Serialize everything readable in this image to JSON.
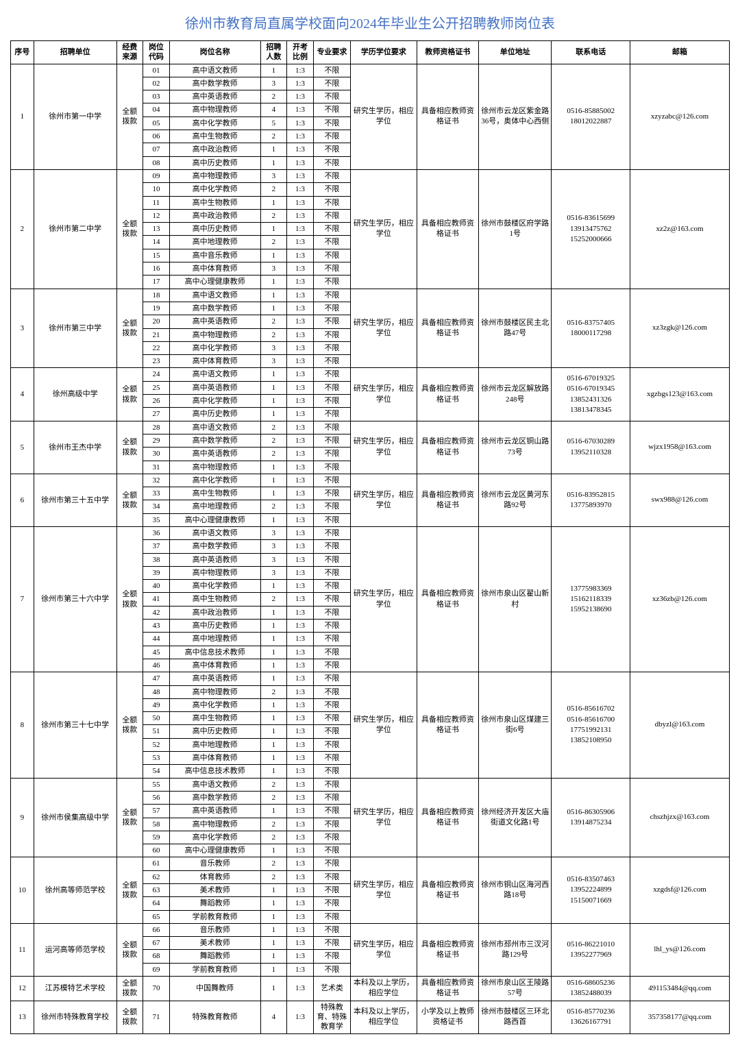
{
  "title": "徐州市教育局直属学校面向2024年毕业生公开招聘教师岗位表",
  "headers": [
    "序号",
    "招聘单位",
    "经费来源",
    "岗位代码",
    "岗位名称",
    "招聘人数",
    "开考比例",
    "专业要求",
    "学历学位要求",
    "教师资格证书",
    "单位地址",
    "联系电话",
    "邮箱"
  ],
  "fund": "全额拨款",
  "edu_g": "研究生学历，相应学位",
  "edu_b": "本科及以上学历，相应学位",
  "cert_s": "具备相应教师资格证书",
  "cert_p": "小学及以上教师资格证书",
  "ratio": "1:3",
  "major_none": "不限",
  "major_art": "艺术类",
  "major_spec": "特殊教育、特殊教育学",
  "units": [
    {
      "seq": "1",
      "name": "徐州市第一中学",
      "addr": "徐州市云龙区紫金路36号，奥体中心西侧",
      "tel": "0516-85885002\n18012022887",
      "mail": "xzyzabc@126.com",
      "rows": [
        {
          "c": "01",
          "p": "高中语文教师",
          "n": "1"
        },
        {
          "c": "02",
          "p": "高中数学教师",
          "n": "3"
        },
        {
          "c": "03",
          "p": "高中英语教师",
          "n": "2"
        },
        {
          "c": "04",
          "p": "高中物理教师",
          "n": "4"
        },
        {
          "c": "05",
          "p": "高中化学教师",
          "n": "5"
        },
        {
          "c": "06",
          "p": "高中生物教师",
          "n": "2"
        },
        {
          "c": "07",
          "p": "高中政治教师",
          "n": "1"
        },
        {
          "c": "08",
          "p": "高中历史教师",
          "n": "1"
        }
      ]
    },
    {
      "seq": "2",
      "name": "徐州市第二中学",
      "addr": "徐州市鼓楼区府学路1号",
      "tel": "0516-83615699\n13913475762\n15252000666",
      "mail": "xz2z@163.com",
      "rows": [
        {
          "c": "09",
          "p": "高中物理教师",
          "n": "3"
        },
        {
          "c": "10",
          "p": "高中化学教师",
          "n": "2"
        },
        {
          "c": "11",
          "p": "高中生物教师",
          "n": "1"
        },
        {
          "c": "12",
          "p": "高中政治教师",
          "n": "2"
        },
        {
          "c": "13",
          "p": "高中历史教师",
          "n": "1"
        },
        {
          "c": "14",
          "p": "高中地理教师",
          "n": "2"
        },
        {
          "c": "15",
          "p": "高中音乐教师",
          "n": "1"
        },
        {
          "c": "16",
          "p": "高中体育教师",
          "n": "3"
        },
        {
          "c": "17",
          "p": "高中心理健康教师",
          "n": "1"
        }
      ]
    },
    {
      "seq": "3",
      "name": "徐州市第三中学",
      "addr": "徐州市鼓楼区民主北路47号",
      "tel": "0516-83757405\n18000117298",
      "mail": "xz3zgk@126.com",
      "rows": [
        {
          "c": "18",
          "p": "高中语文教师",
          "n": "1"
        },
        {
          "c": "19",
          "p": "高中数学教师",
          "n": "1"
        },
        {
          "c": "20",
          "p": "高中英语教师",
          "n": "2"
        },
        {
          "c": "21",
          "p": "高中物理教师",
          "n": "2"
        },
        {
          "c": "22",
          "p": "高中化学教师",
          "n": "3"
        },
        {
          "c": "23",
          "p": "高中体育教师",
          "n": "3"
        }
      ]
    },
    {
      "seq": "4",
      "name": "徐州高级中学",
      "addr": "徐州市云龙区解放路248号",
      "tel": "0516-67019325\n0516-67019345\n13852431326\n13813478345",
      "mail": "xgzbgs123@163.com",
      "rows": [
        {
          "c": "24",
          "p": "高中语文教师",
          "n": "1"
        },
        {
          "c": "25",
          "p": "高中英语教师",
          "n": "1"
        },
        {
          "c": "26",
          "p": "高中化学教师",
          "n": "1"
        },
        {
          "c": "27",
          "p": "高中历史教师",
          "n": "1"
        }
      ]
    },
    {
      "seq": "5",
      "name": "徐州市王杰中学",
      "addr": "徐州市云龙区铜山路73号",
      "tel": "0516-67030289\n13952110328",
      "mail": "wjzx1958@163.com",
      "rows": [
        {
          "c": "28",
          "p": "高中语文教师",
          "n": "2"
        },
        {
          "c": "29",
          "p": "高中数学教师",
          "n": "2"
        },
        {
          "c": "30",
          "p": "高中英语教师",
          "n": "2"
        },
        {
          "c": "31",
          "p": "高中物理教师",
          "n": "1"
        }
      ]
    },
    {
      "seq": "6",
      "name": "徐州市第三十五中学",
      "addr": "徐州市云龙区黄河东路92号",
      "tel": "0516-83952815\n13775893970",
      "mail": "swx988@126.com",
      "rows": [
        {
          "c": "32",
          "p": "高中化学教师",
          "n": "1"
        },
        {
          "c": "33",
          "p": "高中生物教师",
          "n": "1"
        },
        {
          "c": "34",
          "p": "高中地理教师",
          "n": "2"
        },
        {
          "c": "35",
          "p": "高中心理健康教师",
          "n": "1"
        }
      ]
    },
    {
      "seq": "7",
      "name": "徐州市第三十六中学",
      "addr": "徐州市泉山区翟山新村",
      "tel": "13775983369\n15162118339\n15952138690",
      "mail": "xz36zb@126.com",
      "rows": [
        {
          "c": "36",
          "p": "高中语文教师",
          "n": "3"
        },
        {
          "c": "37",
          "p": "高中数学教师",
          "n": "3"
        },
        {
          "c": "38",
          "p": "高中英语教师",
          "n": "3"
        },
        {
          "c": "39",
          "p": "高中物理教师",
          "n": "3"
        },
        {
          "c": "40",
          "p": "高中化学教师",
          "n": "1"
        },
        {
          "c": "41",
          "p": "高中生物教师",
          "n": "2"
        },
        {
          "c": "42",
          "p": "高中政治教师",
          "n": "1"
        },
        {
          "c": "43",
          "p": "高中历史教师",
          "n": "1"
        },
        {
          "c": "44",
          "p": "高中地理教师",
          "n": "1"
        },
        {
          "c": "45",
          "p": "高中信息技术教师",
          "n": "1"
        },
        {
          "c": "46",
          "p": "高中体育教师",
          "n": "1"
        }
      ]
    },
    {
      "seq": "8",
      "name": "徐州市第三十七中学",
      "addr": "徐州市泉山区煤建三街6号",
      "tel": "0516-85616702\n0516-85616700\n17751992131\n13852108950",
      "mail": "dbyzl@163.com",
      "rows": [
        {
          "c": "47",
          "p": "高中英语教师",
          "n": "1"
        },
        {
          "c": "48",
          "p": "高中物理教师",
          "n": "2"
        },
        {
          "c": "49",
          "p": "高中化学教师",
          "n": "1"
        },
        {
          "c": "50",
          "p": "高中生物教师",
          "n": "1"
        },
        {
          "c": "51",
          "p": "高中历史教师",
          "n": "1"
        },
        {
          "c": "52",
          "p": "高中地理教师",
          "n": "1"
        },
        {
          "c": "53",
          "p": "高中体育教师",
          "n": "1"
        },
        {
          "c": "54",
          "p": "高中信息技术教师",
          "n": "1"
        }
      ]
    },
    {
      "seq": "9",
      "name": "徐州市侯集高级中学",
      "addr": "徐州经济开发区大庙街道文化路1号",
      "tel": "0516-86305906\n13914875234",
      "mail": "chszhjzx@163.com",
      "rows": [
        {
          "c": "55",
          "p": "高中语文教师",
          "n": "2"
        },
        {
          "c": "56",
          "p": "高中数学教师",
          "n": "2"
        },
        {
          "c": "57",
          "p": "高中英语教师",
          "n": "1"
        },
        {
          "c": "58",
          "p": "高中物理教师",
          "n": "2"
        },
        {
          "c": "59",
          "p": "高中化学教师",
          "n": "2"
        },
        {
          "c": "60",
          "p": "高中心理健康教师",
          "n": "1"
        }
      ]
    },
    {
      "seq": "10",
      "name": "徐州高等师范学校",
      "addr": "徐州市铜山区海河西路18号",
      "tel": "0516-83507463\n13952224899\n15150071669",
      "mail": "xzgdsf@126.com",
      "rows": [
        {
          "c": "61",
          "p": "音乐教师",
          "n": "2"
        },
        {
          "c": "62",
          "p": "体育教师",
          "n": "2"
        },
        {
          "c": "63",
          "p": "美术教师",
          "n": "1"
        },
        {
          "c": "64",
          "p": "舞蹈教师",
          "n": "1"
        },
        {
          "c": "65",
          "p": "学前教育教师",
          "n": "1"
        }
      ]
    },
    {
      "seq": "11",
      "name": "运河高等师范学校",
      "addr": "徐州市邳州市三汊河路129号",
      "tel": "0516-86221010\n13952277969",
      "mail": "lhl_ys@126.com",
      "rows": [
        {
          "c": "66",
          "p": "音乐教师",
          "n": "1"
        },
        {
          "c": "67",
          "p": "美术教师",
          "n": "1"
        },
        {
          "c": "68",
          "p": "舞蹈教师",
          "n": "1"
        },
        {
          "c": "69",
          "p": "学前教育教师",
          "n": "1"
        }
      ]
    },
    {
      "seq": "12",
      "name": "江苏模特艺术学校",
      "addr": "徐州市泉山区王陵路57号",
      "tel": "0516-68605236\n13852488039",
      "mail": "491153484@qq.com",
      "edu": "b",
      "major": "art",
      "rows": [
        {
          "c": "70",
          "p": "中国舞教师",
          "n": "1"
        }
      ]
    },
    {
      "seq": "13",
      "name": "徐州市特殊教育学校",
      "addr": "徐州市鼓楼区三环北路西首",
      "tel": "0516-85770236\n13626167791",
      "mail": "357358177@qq.com",
      "edu": "b",
      "major": "spec",
      "cert": "p",
      "rows": [
        {
          "c": "71",
          "p": "特殊教育教师",
          "n": "4"
        }
      ]
    }
  ]
}
